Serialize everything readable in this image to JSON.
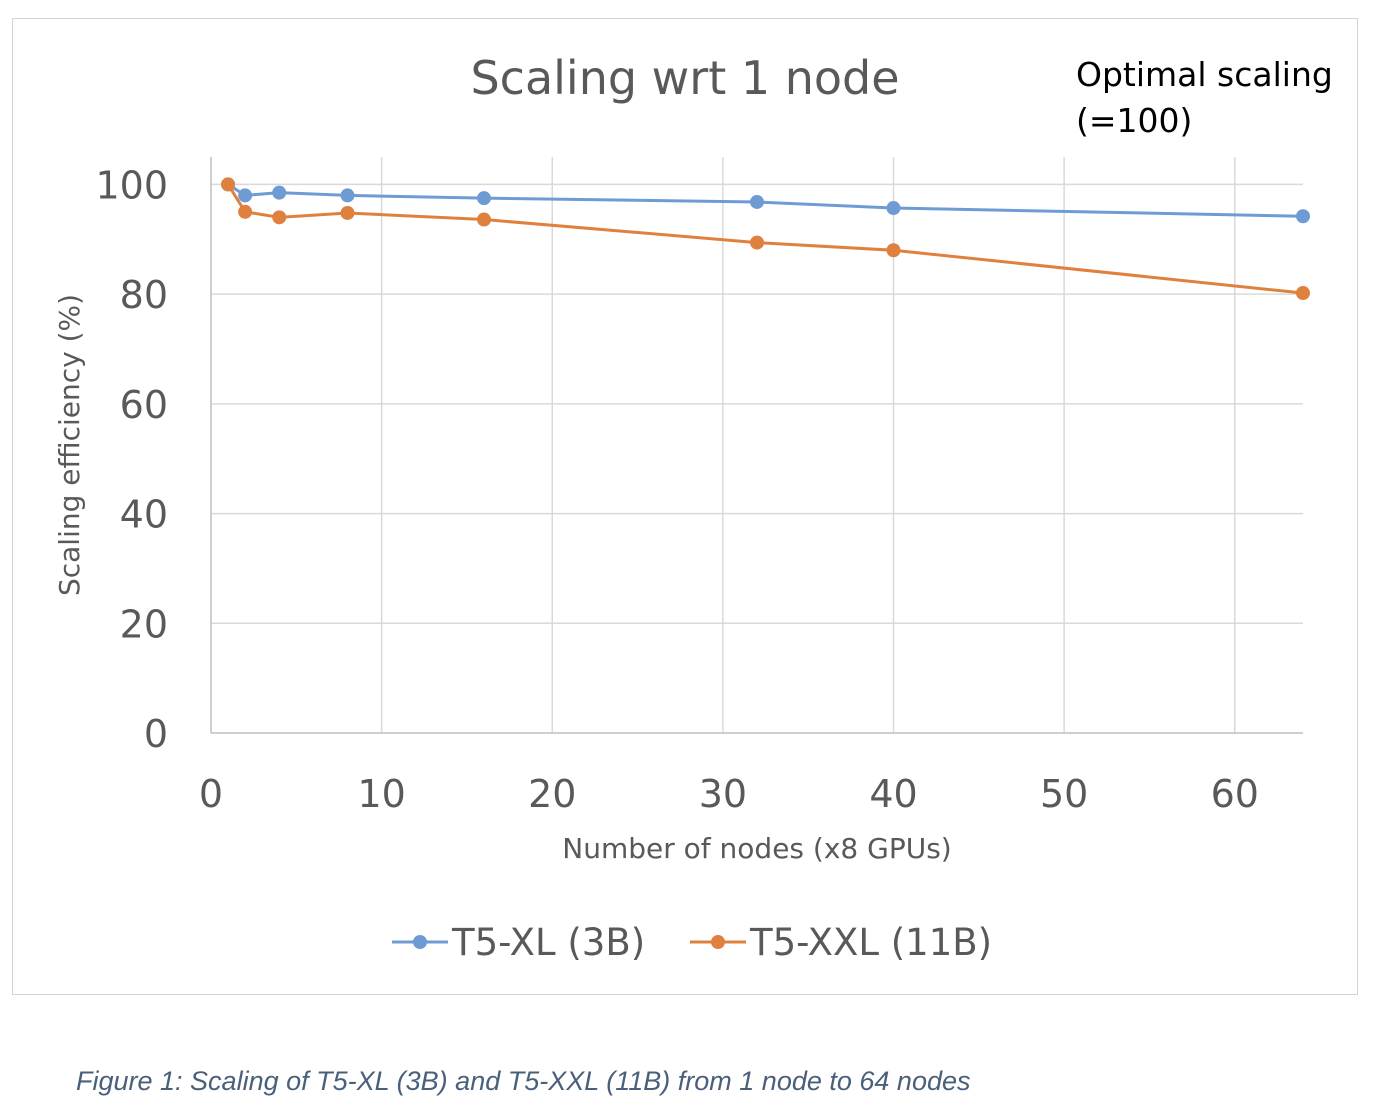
{
  "chart_data": {
    "type": "line",
    "title": "Scaling wrt 1 node",
    "annotation": [
      "Optimal scaling",
      "(=100)"
    ],
    "xlabel": "Number of nodes (x8 GPUs)",
    "ylabel": "Scaling efficiency (%)",
    "xlim": [
      0,
      64
    ],
    "ylim": [
      0,
      105
    ],
    "xticks": [
      0,
      10,
      20,
      30,
      40,
      50,
      60
    ],
    "yticks": [
      0,
      20,
      40,
      60,
      80,
      100
    ],
    "grid": true,
    "legend_position": "bottom",
    "series": [
      {
        "name": "T5-XL (3B)",
        "color": "#6f9bd4",
        "x": [
          1,
          2,
          4,
          8,
          16,
          32,
          40,
          64
        ],
        "y": [
          100,
          98,
          98.5,
          98,
          97.5,
          96.8,
          95.7,
          94.2
        ]
      },
      {
        "name": "T5-XXL (11B)",
        "color": "#e0803f",
        "x": [
          1,
          2,
          4,
          8,
          16,
          32,
          40,
          64
        ],
        "y": [
          100,
          95,
          94,
          94.8,
          93.6,
          89.4,
          88,
          80.2
        ]
      }
    ]
  },
  "caption": "Figure 1: Scaling of T5-XL (3B) and T5-XXL (11B) from 1 node to 64 nodes"
}
